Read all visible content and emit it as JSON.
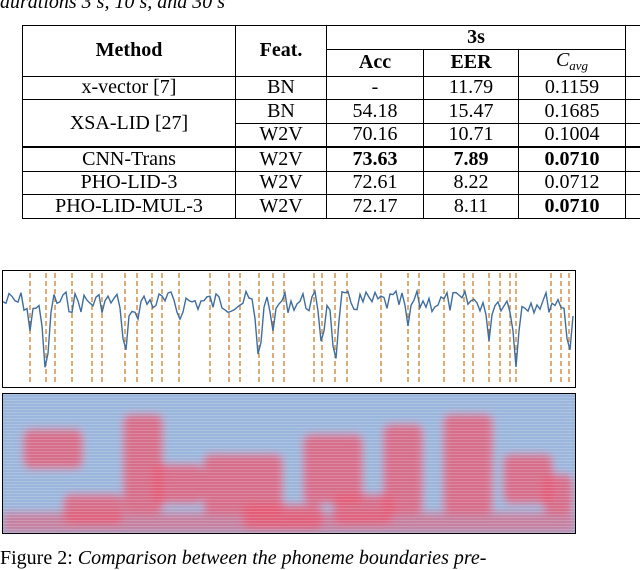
{
  "top_caption": "durations 3 s, 10 s, and 30 s",
  "table": {
    "headers": {
      "method": "Method",
      "feat": "Feat.",
      "group": "3s",
      "acc": "Acc",
      "eer": "EER",
      "cavg_base": "C",
      "cavg_sub": "avg"
    },
    "rows": [
      {
        "method": "x-vector [7]",
        "feat": "BN",
        "acc": "-",
        "eer": "11.79",
        "cavg": "0.1159"
      },
      {
        "method": "XSA-LID [27]",
        "feat": "BN",
        "acc": "54.18",
        "eer": "15.47",
        "cavg": "0.1685"
      },
      {
        "method": "",
        "feat": "W2V",
        "acc": "70.16",
        "eer": "10.71",
        "cavg": "0.1004"
      },
      {
        "method": "CNN-Trans",
        "feat": "W2V",
        "acc": "73.63",
        "eer": "7.89",
        "cavg": "0.0710"
      },
      {
        "method": "PHO-LID-3",
        "feat": "W2V",
        "acc": "72.61",
        "eer": "8.22",
        "cavg": "0.0712"
      },
      {
        "method": "PHO-LID-MUL-3",
        "feat": "W2V",
        "acc": "72.17",
        "eer": "8.11",
        "cavg": "0.0710"
      }
    ]
  },
  "figure": {
    "caption_label": "Figure 2:",
    "caption_text": "Comparison between the phoneme boundaries pre-",
    "colors": {
      "waveform": "#3f6e9e",
      "boundary": "#c8741e",
      "spectrogram_base": "#9bb6dc",
      "spectrogram_hot": "#e8556f"
    }
  }
}
